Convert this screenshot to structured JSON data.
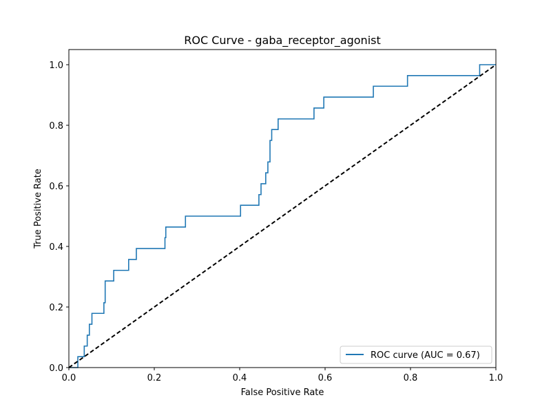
{
  "chart_data": {
    "type": "line",
    "title": "ROC Curve - gaba_receptor_agonist",
    "xlabel": "False Positive Rate",
    "ylabel": "True Positive Rate",
    "xlim": [
      0.0,
      1.0
    ],
    "ylim": [
      0.0,
      1.05
    ],
    "x_ticks": [
      "0.0",
      "0.2",
      "0.4",
      "0.6",
      "0.8",
      "1.0"
    ],
    "y_ticks": [
      "0.0",
      "0.2",
      "0.4",
      "0.6",
      "0.8",
      "1.0"
    ],
    "grid": false,
    "legend_position": "lower-right",
    "series": [
      {
        "name": "ROC curve (AUC = 0.67)",
        "color": "#1f77b4",
        "style": "solid",
        "x": [
          0.0,
          0.021,
          0.021,
          0.036,
          0.036,
          0.043,
          0.043,
          0.048,
          0.048,
          0.054,
          0.054,
          0.082,
          0.082,
          0.085,
          0.085,
          0.105,
          0.105,
          0.14,
          0.14,
          0.158,
          0.158,
          0.225,
          0.225,
          0.227,
          0.227,
          0.273,
          0.273,
          0.402,
          0.402,
          0.445,
          0.445,
          0.45,
          0.45,
          0.461,
          0.461,
          0.466,
          0.466,
          0.471,
          0.471,
          0.475,
          0.475,
          0.49,
          0.49,
          0.574,
          0.574,
          0.597,
          0.597,
          0.713,
          0.713,
          0.793,
          0.793,
          0.962,
          0.962,
          1.0
        ],
        "y": [
          0.0,
          0.0,
          0.036,
          0.036,
          0.071,
          0.071,
          0.107,
          0.107,
          0.143,
          0.143,
          0.179,
          0.179,
          0.214,
          0.214,
          0.286,
          0.286,
          0.321,
          0.321,
          0.357,
          0.357,
          0.393,
          0.393,
          0.429,
          0.429,
          0.464,
          0.464,
          0.5,
          0.5,
          0.536,
          0.536,
          0.571,
          0.571,
          0.607,
          0.607,
          0.643,
          0.643,
          0.679,
          0.679,
          0.75,
          0.75,
          0.786,
          0.786,
          0.821,
          0.821,
          0.857,
          0.857,
          0.893,
          0.893,
          0.929,
          0.929,
          0.964,
          0.964,
          1.0,
          1.0
        ]
      },
      {
        "color": "#000000",
        "style": "dashed",
        "x": [
          0.0,
          1.0
        ],
        "y": [
          0.0,
          1.0
        ]
      }
    ]
  }
}
